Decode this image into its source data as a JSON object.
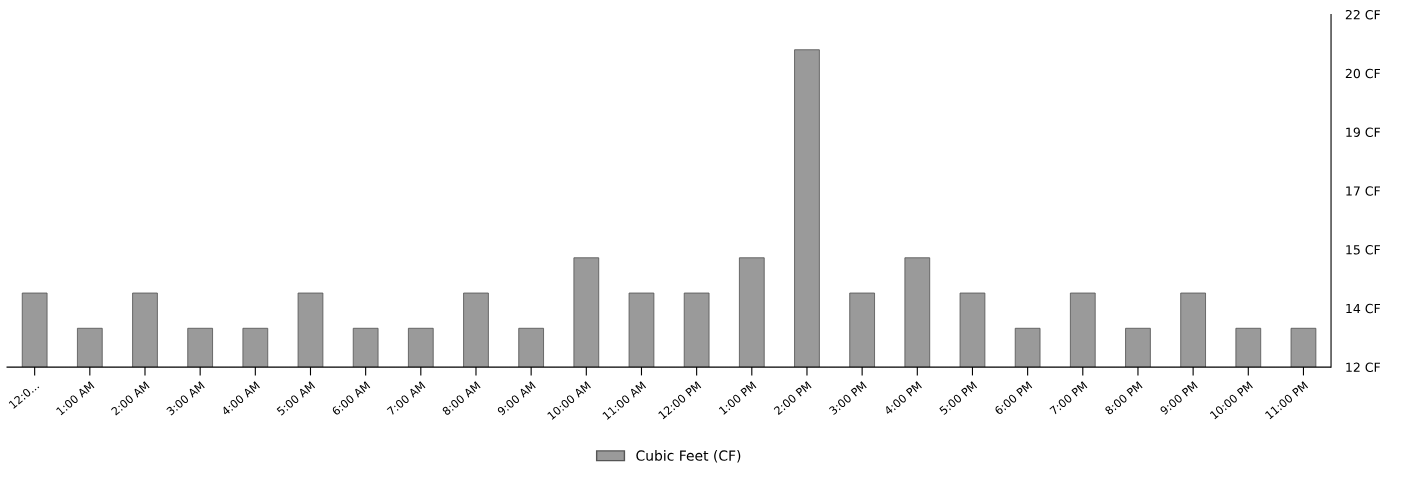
{
  "chart_data": {
    "type": "bar",
    "categories": [
      "12:0...",
      "1:00 AM",
      "2:00 AM",
      "3:00 AM",
      "4:00 AM",
      "5:00 AM",
      "6:00 AM",
      "7:00 AM",
      "8:00 AM",
      "9:00 AM",
      "10:00 AM",
      "11:00 AM",
      "12:00 PM",
      "1:00 PM",
      "2:00 PM",
      "3:00 PM",
      "4:00 PM",
      "5:00 PM",
      "6:00 PM",
      "7:00 PM",
      "8:00 PM",
      "9:00 PM",
      "10:00 PM",
      "11:00 PM"
    ],
    "series": [
      {
        "name": "Cubic Feet (CF)",
        "color": "#9a9a9a",
        "values": [
          14.1,
          13.1,
          14.1,
          13.1,
          13.1,
          14.1,
          13.1,
          13.1,
          14.1,
          13.1,
          15.1,
          14.1,
          14.1,
          15.1,
          21.0,
          14.1,
          15.1,
          14.1,
          13.1,
          14.1,
          13.1,
          14.1,
          13.1,
          13.1
        ]
      }
    ],
    "ylim": [
      12,
      22
    ],
    "yticks": [
      {
        "value": 12,
        "label": "12 CF"
      },
      {
        "value": 13.667,
        "label": "14 CF"
      },
      {
        "value": 15.333,
        "label": "15 CF"
      },
      {
        "value": 17,
        "label": "17 CF"
      },
      {
        "value": 18.667,
        "label": "19 CF"
      },
      {
        "value": 20.333,
        "label": "20 CF"
      },
      {
        "value": 22,
        "label": "22 CF"
      }
    ],
    "grid": false,
    "legend": "bottom"
  }
}
